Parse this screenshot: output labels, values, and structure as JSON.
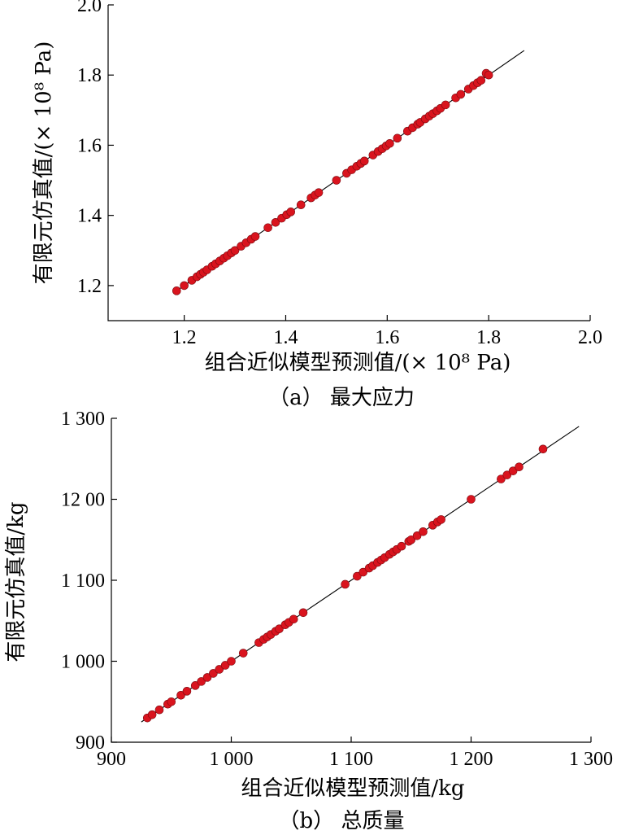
{
  "chart_data": [
    {
      "type": "scatter",
      "caption": "（a） 最大应力",
      "xlabel": "组合近似模型预测值/(× 10⁸ Pa)",
      "ylabel": "有限元仿真值/(× 10⁸ Pa)",
      "xlim": [
        1.05,
        2.0
      ],
      "ylim": [
        1.1,
        2.0
      ],
      "xticks": [
        1.2,
        1.4,
        1.6,
        1.8,
        2.0
      ],
      "xtick_labels": [
        "1.2",
        "1.4",
        "1.6",
        "1.8",
        "2.0"
      ],
      "yticks": [
        1.2,
        1.4,
        1.6,
        1.8,
        2.0
      ],
      "ytick_labels": [
        "1.2",
        "1.4",
        "1.6",
        "1.8",
        "2.0"
      ],
      "reference_line": [
        [
          1.18,
          1.18
        ],
        [
          1.87,
          1.87
        ]
      ],
      "color": "#d9141e",
      "points": {
        "x": [
          1.185,
          1.2,
          1.215,
          1.225,
          1.232,
          1.238,
          1.245,
          1.255,
          1.262,
          1.27,
          1.278,
          1.285,
          1.293,
          1.3,
          1.312,
          1.322,
          1.332,
          1.34,
          1.365,
          1.38,
          1.392,
          1.402,
          1.41,
          1.43,
          1.45,
          1.458,
          1.465,
          1.5,
          1.52,
          1.53,
          1.54,
          1.548,
          1.555,
          1.572,
          1.582,
          1.59,
          1.598,
          1.605,
          1.62,
          1.64,
          1.65,
          1.66,
          1.665,
          1.675,
          1.683,
          1.69,
          1.698,
          1.705,
          1.715,
          1.735,
          1.745,
          1.76,
          1.77,
          1.778,
          1.785,
          1.795,
          1.8
        ],
        "y": [
          1.185,
          1.2,
          1.215,
          1.225,
          1.232,
          1.238,
          1.245,
          1.255,
          1.262,
          1.27,
          1.278,
          1.285,
          1.293,
          1.3,
          1.312,
          1.322,
          1.332,
          1.34,
          1.365,
          1.38,
          1.392,
          1.402,
          1.41,
          1.43,
          1.45,
          1.458,
          1.465,
          1.5,
          1.52,
          1.53,
          1.54,
          1.548,
          1.555,
          1.572,
          1.582,
          1.59,
          1.598,
          1.605,
          1.62,
          1.64,
          1.65,
          1.66,
          1.665,
          1.675,
          1.683,
          1.69,
          1.698,
          1.705,
          1.715,
          1.735,
          1.745,
          1.76,
          1.77,
          1.778,
          1.785,
          1.805,
          1.8
        ]
      }
    },
    {
      "type": "scatter",
      "caption": "（b） 总质量",
      "xlabel": "组合近似模型预测值/kg",
      "ylabel": "有限元仿真值/kg",
      "xlim": [
        900,
        1300
      ],
      "ylim": [
        900,
        1300
      ],
      "xticks": [
        900,
        1000,
        1100,
        1200,
        1300
      ],
      "xtick_labels": [
        "900",
        "1 000",
        "1 100",
        "1 200",
        "1 300"
      ],
      "yticks": [
        900,
        1000,
        1100,
        1200,
        1300
      ],
      "ytick_labels": [
        "900",
        "1 000",
        "1 100",
        "12 00",
        "1 300"
      ],
      "reference_line": [
        [
          925,
          925
        ],
        [
          1290,
          1290
        ]
      ],
      "color": "#d9141e",
      "points": {
        "x": [
          930,
          934,
          940,
          947,
          950,
          958,
          963,
          970,
          975,
          980,
          985,
          990,
          995,
          1000,
          1010,
          1023,
          1027,
          1030,
          1033,
          1037,
          1040,
          1045,
          1048,
          1052,
          1060,
          1095,
          1105,
          1110,
          1115,
          1118,
          1122,
          1125,
          1128,
          1132,
          1135,
          1138,
          1142,
          1148,
          1150,
          1155,
          1160,
          1168,
          1172,
          1175,
          1200,
          1225,
          1230,
          1235,
          1240,
          1260
        ],
        "y": [
          930,
          934,
          940,
          947,
          950,
          958,
          963,
          970,
          975,
          980,
          985,
          990,
          995,
          1000,
          1010,
          1023,
          1027,
          1030,
          1033,
          1037,
          1040,
          1045,
          1048,
          1052,
          1060,
          1095,
          1105,
          1110,
          1115,
          1118,
          1122,
          1125,
          1128,
          1132,
          1135,
          1138,
          1142,
          1148,
          1150,
          1155,
          1160,
          1168,
          1172,
          1175,
          1200,
          1225,
          1230,
          1235,
          1240,
          1262
        ]
      }
    }
  ]
}
